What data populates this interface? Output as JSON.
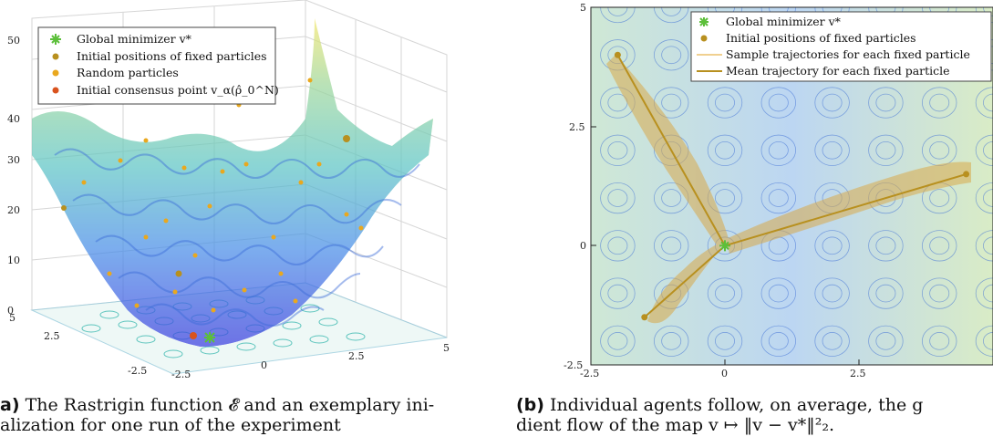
{
  "chart_data": [
    {
      "type": "surface3d",
      "function": "Rastrigin",
      "zlim": [
        0,
        50
      ],
      "z_ticks": [
        "0",
        "10",
        "20",
        "30",
        "40",
        "50"
      ],
      "x_ticks": [
        "-2.5",
        "0",
        "2.5",
        "5"
      ],
      "y_ticks": [
        "-2.5",
        "2.5",
        "5"
      ],
      "legend": [
        {
          "label": "Global minimizer v*",
          "marker": "asterisk",
          "color": "#5cbf3a"
        },
        {
          "label": "Initial positions of fixed particles",
          "marker": "dot",
          "color": "#b8901f"
        },
        {
          "label": "Random particles",
          "marker": "dot",
          "color": "#e9a81e"
        },
        {
          "label": "Initial consensus point v_α(ρ̂_0^N)",
          "marker": "dot",
          "color": "#d9531e"
        }
      ],
      "legend_placement": "top-left",
      "grid": true
    },
    {
      "type": "scatter",
      "xlim": [
        -2.5,
        5
      ],
      "ylim": [
        -2.5,
        5
      ],
      "x_ticks": [
        "-2.5",
        "0",
        "2.5"
      ],
      "y_ticks": [
        "-2.5",
        "0",
        "2.5",
        "5"
      ],
      "global_minimizer": {
        "x": 0,
        "y": 0
      },
      "fixed_particles": [
        {
          "x": -2,
          "y": 4
        },
        {
          "x": 4.5,
          "y": 1.5
        },
        {
          "x": -1.5,
          "y": -1.5
        }
      ],
      "legend": [
        {
          "label": "Global minimizer v*",
          "marker": "asterisk",
          "color": "#5cbf3a"
        },
        {
          "label": "Initial positions of fixed particles",
          "marker": "dot",
          "color": "#b8901f"
        },
        {
          "label": "Sample trajectories for each fixed particle",
          "marker": "line",
          "color": "#f0d090"
        },
        {
          "label": "Mean trajectory for each fixed particle",
          "marker": "line",
          "color": "#b8901f"
        }
      ],
      "legend_placement": "top-right",
      "background": "Rastrigin contour"
    }
  ],
  "captions": {
    "left_label": "a)",
    "left_line1": "The Rastrigin function 𝓔 and an exemplary ini-",
    "left_line2": "alization for one run of the experiment",
    "right_label": "(b)",
    "right_line1": "Individual agents follow, on average, the g",
    "right_line2": "dient flow of the map v ↦ ‖v − v*‖²₂."
  }
}
